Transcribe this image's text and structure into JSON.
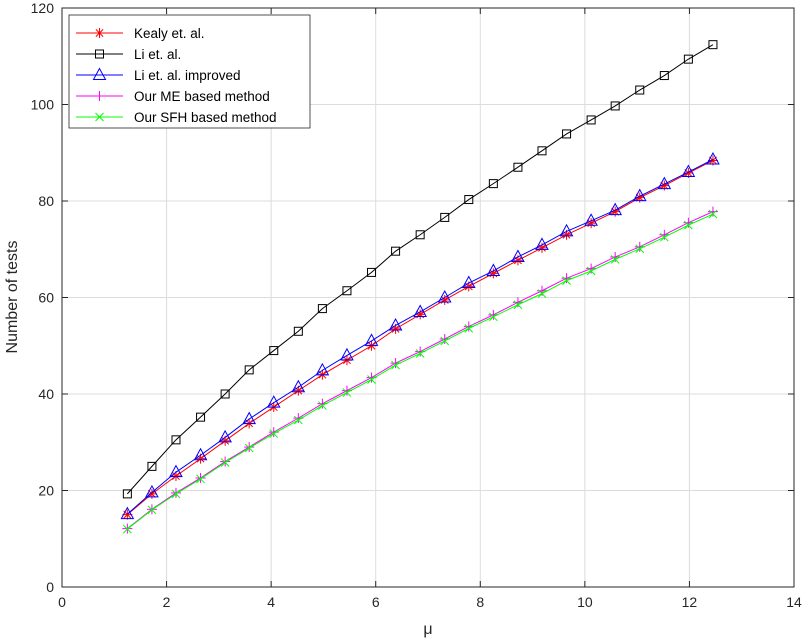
{
  "chart_data": {
    "type": "line",
    "xlabel": "μ",
    "ylabel": "Number of tests",
    "xlim": [
      0,
      14
    ],
    "ylim": [
      0,
      120
    ],
    "xticks": [
      0,
      2,
      4,
      6,
      8,
      10,
      12,
      14
    ],
    "yticks": [
      0,
      20,
      40,
      60,
      80,
      100,
      120
    ],
    "grid": true,
    "legend_position": "top-left",
    "x": [
      1.25,
      1.72,
      2.18,
      2.65,
      3.12,
      3.58,
      4.05,
      4.52,
      4.98,
      5.45,
      5.92,
      6.38,
      6.85,
      7.32,
      7.78,
      8.25,
      8.72,
      9.18,
      9.65,
      10.12,
      10.58,
      11.05,
      11.52,
      11.98,
      12.45
    ],
    "series": [
      {
        "name": "Kealy et. al.",
        "color": "#ff0000",
        "marker": "asterisk",
        "values": [
          15.0,
          19.3,
          23.0,
          26.6,
          30.3,
          33.9,
          37.3,
          40.7,
          44.0,
          47.0,
          50.0,
          53.5,
          56.5,
          59.5,
          62.3,
          65.0,
          67.7,
          70.3,
          73.0,
          75.4,
          77.8,
          80.7,
          83.2,
          85.8,
          88.4
        ]
      },
      {
        "name": "Li et. al.",
        "color": "#000000",
        "marker": "square",
        "values": [
          19.3,
          25.0,
          30.5,
          35.2,
          40.0,
          45.0,
          49.0,
          53.0,
          57.7,
          61.4,
          65.2,
          69.6,
          73.0,
          76.6,
          80.3,
          83.6,
          87.0,
          90.4,
          93.9,
          96.8,
          99.7,
          103.0,
          106.0,
          109.4,
          112.4
        ]
      },
      {
        "name": "Li et. al. improved",
        "color": "#0000ff",
        "marker": "triangle",
        "values": [
          15.1,
          19.6,
          23.8,
          27.3,
          31.0,
          34.8,
          38.2,
          41.4,
          44.9,
          48.0,
          51.0,
          54.2,
          57.0,
          60.0,
          63.0,
          65.5,
          68.4,
          70.9,
          73.7,
          75.9,
          78.1,
          81.0,
          83.5,
          86.0,
          88.6
        ]
      },
      {
        "name": "Our ME based method",
        "color": "#ff00ff",
        "marker": "plus",
        "values": [
          12.1,
          16.1,
          19.5,
          22.6,
          26.0,
          29.0,
          32.1,
          35.0,
          38.0,
          40.7,
          43.4,
          46.4,
          48.8,
          51.4,
          54.0,
          56.4,
          59.0,
          61.4,
          64.0,
          66.0,
          68.4,
          70.5,
          73.0,
          75.5,
          77.8
        ]
      },
      {
        "name": "Our SFH based method",
        "color": "#00ff00",
        "marker": "x",
        "values": [
          12.0,
          16.0,
          19.3,
          22.4,
          25.8,
          28.8,
          31.8,
          34.6,
          37.6,
          40.3,
          43.0,
          46.0,
          48.4,
          51.0,
          53.6,
          56.0,
          58.5,
          60.8,
          63.5,
          65.5,
          67.9,
          70.1,
          72.5,
          75.0,
          77.3
        ]
      }
    ]
  }
}
